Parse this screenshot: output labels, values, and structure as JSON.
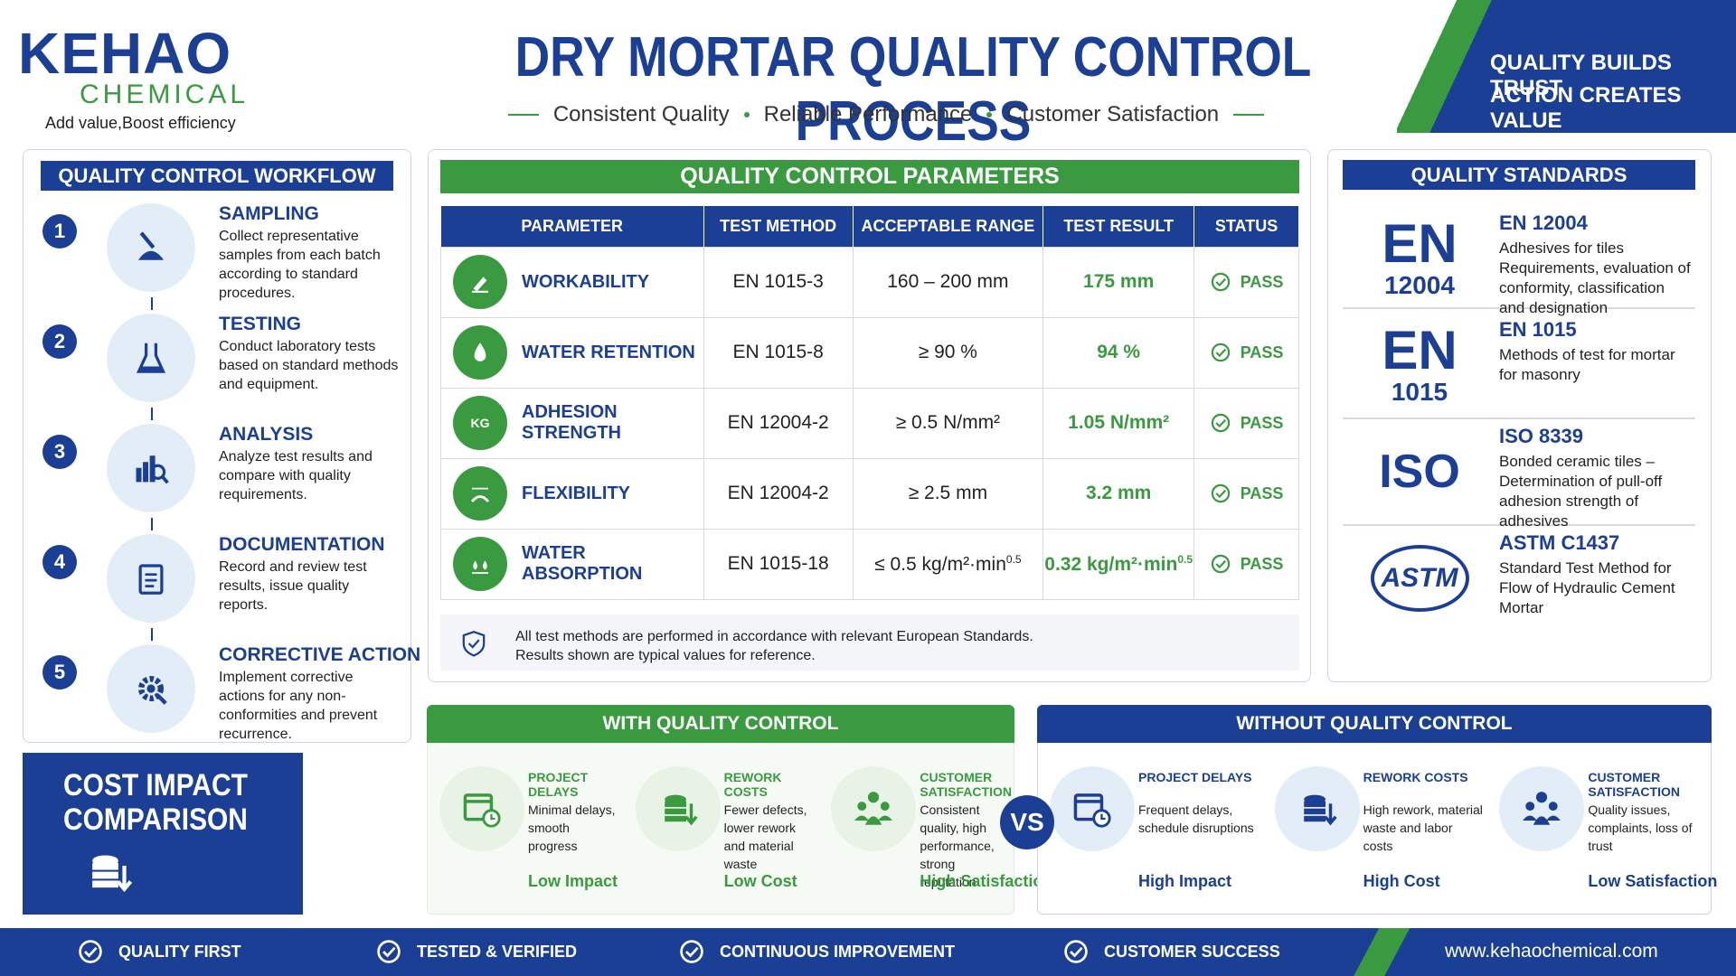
{
  "header": {
    "brand": "KEHAO",
    "brand_sub": "CHEMICAL",
    "tagline": "Add value,Boost efficiency",
    "title": "DRY MORTAR QUALITY CONTROL PROCESS",
    "subtitle_items": [
      "Consistent Quality",
      "Reliable Performance",
      "Customer Satisfaction"
    ],
    "banner_lines": [
      "QUALITY BUILDS TRUST",
      "ACTION CREATES VALUE"
    ]
  },
  "workflow": {
    "title": "QUALITY CONTROL WORKFLOW",
    "steps": [
      {
        "number": "1",
        "title": "SAMPLING",
        "description": "Collect representative samples from each batch according to standard procedures."
      },
      {
        "number": "2",
        "title": "TESTING",
        "description": "Conduct laboratory tests based on standard methods and equipment."
      },
      {
        "number": "3",
        "title": "ANALYSIS",
        "description": "Analyze test results and compare with quality requirements."
      },
      {
        "number": "4",
        "title": "DOCUMENTATION",
        "description": "Record and review test results, issue quality reports."
      },
      {
        "number": "5",
        "title": "CORRECTIVE ACTION",
        "description": "Implement corrective actions for any non-conformities and prevent recurrence."
      }
    ]
  },
  "parameters": {
    "title": "QUALITY CONTROL PARAMETERS",
    "columns": [
      "PARAMETER",
      "TEST METHOD",
      "ACCEPTABLE RANGE",
      "TEST RESULT",
      "STATUS"
    ],
    "rows": [
      {
        "parameter": "WORKABILITY",
        "method": "EN 1015-3",
        "range": "160 – 200 mm",
        "result": "175 mm",
        "status": "PASS"
      },
      {
        "parameter": "WATER RETENTION",
        "method": "EN 1015-8",
        "range": "≥ 90 %",
        "result": "94 %",
        "status": "PASS"
      },
      {
        "parameter": "ADHESION STRENGTH",
        "method": "EN 12004-2",
        "range": "≥ 0.5 N/mm²",
        "result": "1.05 N/mm²",
        "status": "PASS"
      },
      {
        "parameter": "FLEXIBILITY",
        "method": "EN 12004-2",
        "range": "≥ 2.5 mm",
        "result": "3.2 mm",
        "status": "PASS"
      },
      {
        "parameter": "WATER ABSORPTION",
        "method": "EN 1015-18",
        "range": {
          "text": "≤ 0.5 kg/m²·min",
          "sup": "0.5"
        },
        "result": {
          "text": "0.32 kg/m²·min",
          "sup": "0.5"
        },
        "status": "PASS"
      }
    ],
    "icon_label": "KG",
    "note_lines": [
      "All test methods are performed in accordance with relevant European Standards.",
      "Results shown are typical values for reference."
    ]
  },
  "standards": {
    "title": "QUALITY STANDARDS",
    "items": [
      {
        "badge": "EN",
        "badge_sub": "12004",
        "name": "EN 12004",
        "description": "Adhesives for tiles Requirements, evaluation of conformity, classification and designation"
      },
      {
        "badge": "EN",
        "badge_sub": "1015",
        "name": "EN 1015",
        "description": "Methods of test for mortar for masonry"
      },
      {
        "badge": "ISO",
        "name": "ISO 8339",
        "description": "Bonded ceramic tiles – Determination of pull-off adhesion strength of adhesives"
      },
      {
        "badge": "ASTM",
        "name": "ASTM C1437",
        "description": "Standard Test Method for Flow of Hydraulic Cement Mortar"
      }
    ]
  },
  "cost": {
    "title_lines": [
      "COST IMPACT",
      "COMPARISON"
    ],
    "vs": "VS",
    "with": {
      "title": "WITH QUALITY CONTROL",
      "items": [
        {
          "title": "PROJECT DELAYS",
          "description": "Minimal delays, smooth progress",
          "outcome": "Low Impact"
        },
        {
          "title": "REWORK COSTS",
          "description": "Fewer defects, lower rework and material waste",
          "outcome": "Low Cost"
        },
        {
          "title": "CUSTOMER SATISFACTION",
          "description": "Consistent quality, high performance, strong reputation",
          "outcome": "High Satisfaction"
        }
      ]
    },
    "without": {
      "title": "WITHOUT QUALITY CONTROL",
      "items": [
        {
          "title": "PROJECT DELAYS",
          "description": "Frequent delays, schedule disruptions",
          "outcome": "High Impact"
        },
        {
          "title": "REWORK COSTS",
          "description": "High rework, material waste and labor costs",
          "outcome": "High Cost"
        },
        {
          "title": "CUSTOMER SATISFACTION",
          "description": "Quality issues, complaints, loss of trust",
          "outcome": "Low Satisfaction"
        }
      ]
    }
  },
  "footer": {
    "items": [
      "QUALITY FIRST",
      "TESTED & VERIFIED",
      "CONTINUOUS IMPROVEMENT",
      "CUSTOMER SUCCESS"
    ],
    "website": "www.kehaochemical.com"
  }
}
